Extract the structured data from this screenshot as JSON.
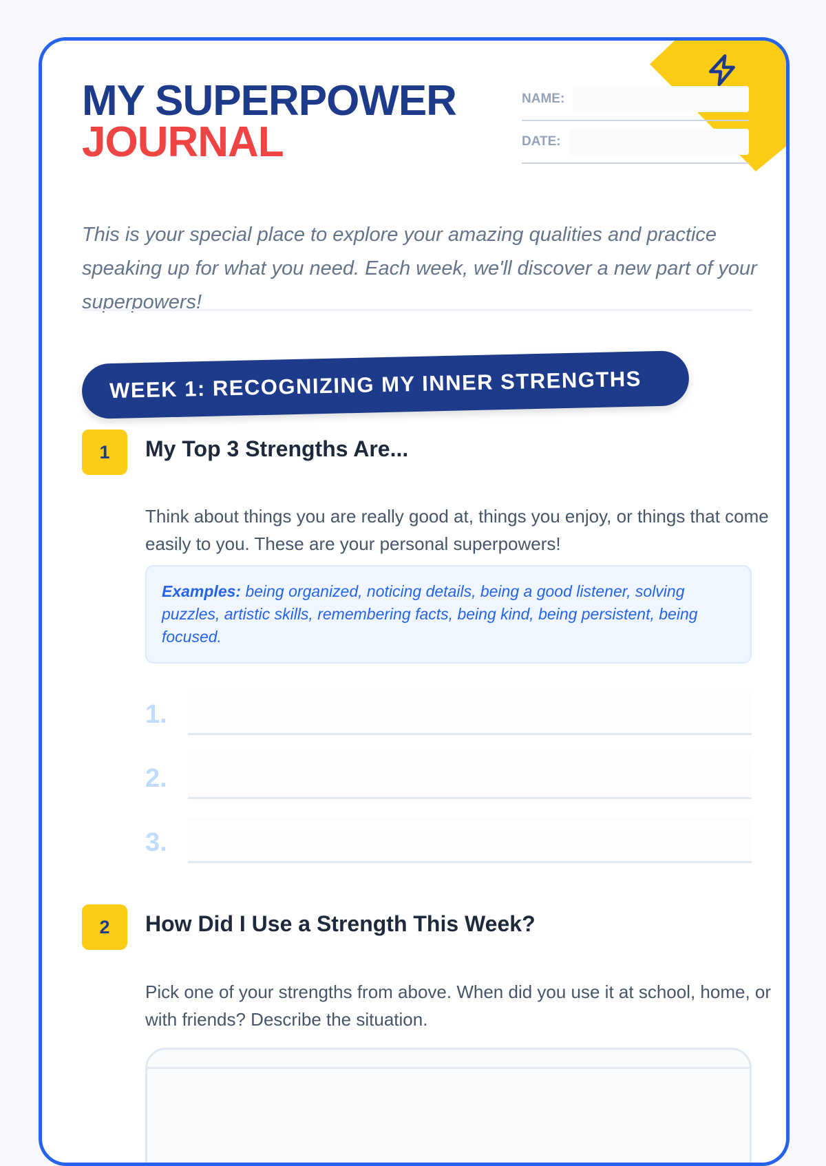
{
  "header": {
    "title_line1": "MY SUPERPOWER",
    "title_line2": "JOURNAL",
    "name_label": "NAME:",
    "date_label": "DATE:",
    "corner_icon": "lightning-bolt-icon"
  },
  "intro": "This is your special place to explore your amazing qualities and practice speaking up for what you need. Each week, we'll discover a new part of your superpowers!",
  "week_banner": "WEEK 1: RECOGNIZING MY INNER STRENGTHS",
  "sections": [
    {
      "number": "1",
      "heading": "My Top 3 Strengths Are...",
      "description": "Think about things you are really good at, things you enjoy, or things that come easily to you. These are your personal superpowers!",
      "examples_label": "Examples:",
      "examples_text": " being organized, noticing details, being a good listener, solving puzzles, artistic skills, remembering facts, being kind, being persistent, being focused.",
      "lines": [
        "1.",
        "2.",
        "3."
      ]
    },
    {
      "number": "2",
      "heading": "How Did I Use a Strength This Week?",
      "description": "Pick one of your strengths from above. When did you use it at school, home, or with friends? Describe the situation."
    }
  ],
  "colors": {
    "accent": "#2563eb",
    "navy": "#1e3a8a",
    "red": "#ef4444",
    "yellow": "#facc15"
  }
}
